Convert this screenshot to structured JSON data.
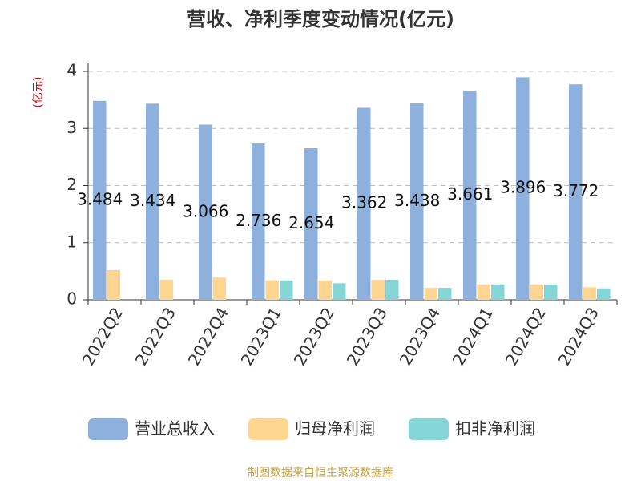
{
  "chart_data": {
    "type": "bar",
    "title": "营收、净利季度变动情况(亿元)",
    "y_label": "(亿元)",
    "source": "制图数据来自恒生聚源数据库",
    "categories": [
      "2022Q2",
      "2022Q3",
      "2022Q4",
      "2023Q1",
      "2023Q2",
      "2023Q3",
      "2023Q4",
      "2024Q1",
      "2024Q2",
      "2024Q3"
    ],
    "series": [
      {
        "name": "营业总收入",
        "color": "#8eb0dc",
        "values": [
          3.484,
          3.434,
          3.066,
          2.736,
          2.654,
          3.362,
          3.438,
          3.661,
          3.896,
          3.772
        ]
      },
      {
        "name": "归母净利润",
        "color": "#fed692",
        "values": [
          0.52,
          0.35,
          0.39,
          0.34,
          0.34,
          0.35,
          0.21,
          0.27,
          0.27,
          0.22
        ]
      },
      {
        "name": "扣非净利润",
        "color": "#86d5d6",
        "values": [
          null,
          null,
          null,
          0.34,
          0.29,
          0.35,
          0.21,
          0.27,
          0.27,
          0.2
        ]
      }
    ],
    "ylim": [
      0,
      4
    ],
    "yticks": [
      0,
      1,
      2,
      3,
      4
    ],
    "grid": true,
    "legend": "bottom"
  }
}
